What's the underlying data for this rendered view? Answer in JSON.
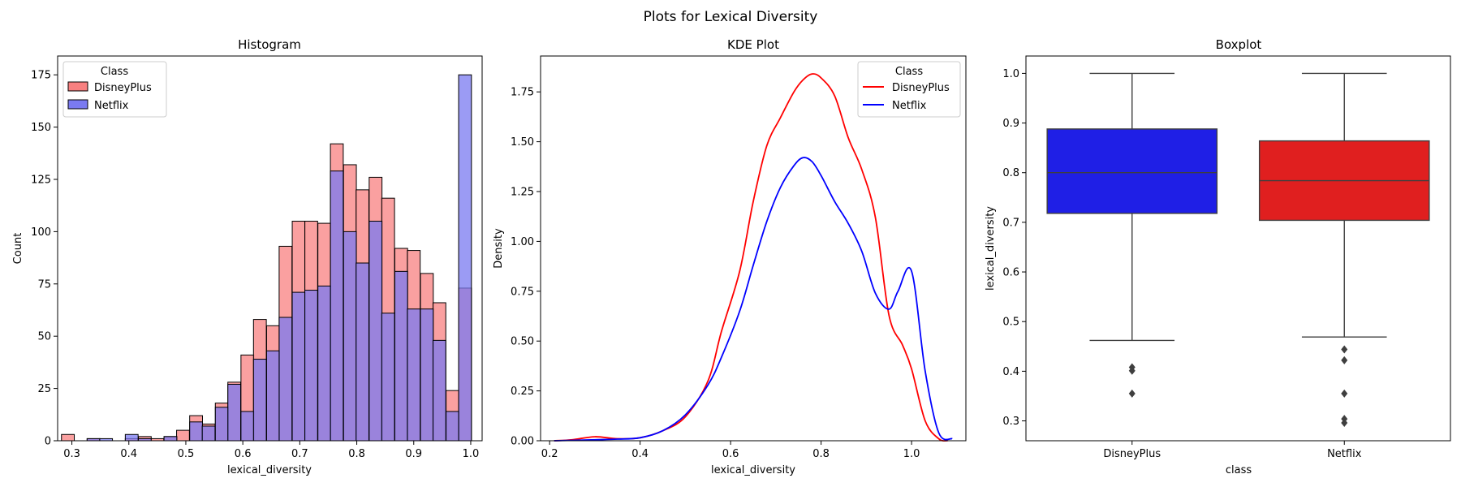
{
  "figure": {
    "suptitle": "Plots for Lexical Diversity"
  },
  "chart_data": [
    {
      "type": "histogram",
      "title": "Histogram",
      "xlabel": "lexical_diversity",
      "ylabel": "Count",
      "xlim": [
        0.275,
        1.02
      ],
      "ylim": [
        0,
        184
      ],
      "xticks": [
        0.3,
        0.4,
        0.5,
        0.6,
        0.7,
        0.8,
        0.9,
        1.0
      ],
      "xtick_labels": [
        "0.3",
        "0.4",
        "0.5",
        "0.6",
        "0.7",
        "0.8",
        "0.9",
        "1.0"
      ],
      "yticks": [
        0,
        25,
        50,
        75,
        100,
        125,
        150,
        175
      ],
      "ytick_labels": [
        "0",
        "25",
        "50",
        "75",
        "100",
        "125",
        "150",
        "175"
      ],
      "legend": {
        "title": "Class",
        "position": "top-left"
      },
      "bin_width": 0.0225,
      "series": [
        {
          "name": "DisneyPlus",
          "color": "#ff0000",
          "fill": "#f88080",
          "bins": [
            {
              "x": 0.293,
              "count": 3
            },
            {
              "x": 0.338,
              "count": 1
            },
            {
              "x": 0.405,
              "count": 1
            },
            {
              "x": 0.428,
              "count": 2
            },
            {
              "x": 0.45,
              "count": 1
            },
            {
              "x": 0.473,
              "count": 2
            },
            {
              "x": 0.495,
              "count": 5
            },
            {
              "x": 0.518,
              "count": 12
            },
            {
              "x": 0.54,
              "count": 8
            },
            {
              "x": 0.563,
              "count": 18
            },
            {
              "x": 0.585,
              "count": 28
            },
            {
              "x": 0.608,
              "count": 41
            },
            {
              "x": 0.63,
              "count": 58
            },
            {
              "x": 0.653,
              "count": 55
            },
            {
              "x": 0.675,
              "count": 93
            },
            {
              "x": 0.698,
              "count": 105
            },
            {
              "x": 0.72,
              "count": 105
            },
            {
              "x": 0.743,
              "count": 104
            },
            {
              "x": 0.765,
              "count": 142
            },
            {
              "x": 0.788,
              "count": 132
            },
            {
              "x": 0.81,
              "count": 120
            },
            {
              "x": 0.833,
              "count": 126
            },
            {
              "x": 0.855,
              "count": 116
            },
            {
              "x": 0.878,
              "count": 92
            },
            {
              "x": 0.9,
              "count": 91
            },
            {
              "x": 0.923,
              "count": 80
            },
            {
              "x": 0.945,
              "count": 66
            },
            {
              "x": 0.968,
              "count": 24
            },
            {
              "x": 0.99,
              "count": 73
            }
          ]
        },
        {
          "name": "Netflix",
          "color": "#0000ff",
          "fill": "#7a7af0",
          "bins": [
            {
              "x": 0.338,
              "count": 1
            },
            {
              "x": 0.36,
              "count": 1
            },
            {
              "x": 0.405,
              "count": 3
            },
            {
              "x": 0.428,
              "count": 1
            },
            {
              "x": 0.473,
              "count": 2
            },
            {
              "x": 0.518,
              "count": 9
            },
            {
              "x": 0.54,
              "count": 7
            },
            {
              "x": 0.563,
              "count": 16
            },
            {
              "x": 0.585,
              "count": 27
            },
            {
              "x": 0.608,
              "count": 14
            },
            {
              "x": 0.63,
              "count": 39
            },
            {
              "x": 0.653,
              "count": 43
            },
            {
              "x": 0.675,
              "count": 59
            },
            {
              "x": 0.698,
              "count": 71
            },
            {
              "x": 0.72,
              "count": 72
            },
            {
              "x": 0.743,
              "count": 74
            },
            {
              "x": 0.765,
              "count": 129
            },
            {
              "x": 0.788,
              "count": 100
            },
            {
              "x": 0.81,
              "count": 85
            },
            {
              "x": 0.833,
              "count": 105
            },
            {
              "x": 0.855,
              "count": 61
            },
            {
              "x": 0.878,
              "count": 81
            },
            {
              "x": 0.9,
              "count": 63
            },
            {
              "x": 0.923,
              "count": 63
            },
            {
              "x": 0.945,
              "count": 48
            },
            {
              "x": 0.968,
              "count": 14
            },
            {
              "x": 0.99,
              "count": 175
            }
          ]
        }
      ]
    },
    {
      "type": "line",
      "title": "KDE Plot",
      "xlabel": "lexical_diversity",
      "ylabel": "Density",
      "xlim": [
        0.18,
        1.12
      ],
      "ylim": [
        0,
        1.93
      ],
      "xticks": [
        0.2,
        0.4,
        0.6,
        0.8,
        1.0
      ],
      "xtick_labels": [
        "0.2",
        "0.4",
        "0.6",
        "0.8",
        "1.0"
      ],
      "yticks": [
        0,
        0.25,
        0.5,
        0.75,
        1.0,
        1.25,
        1.5,
        1.75
      ],
      "ytick_labels": [
        "0.00",
        "0.25",
        "0.50",
        "0.75",
        "1.00",
        "1.25",
        "1.50",
        "1.75"
      ],
      "legend": {
        "title": "Class",
        "position": "top-right"
      },
      "series": [
        {
          "name": "DisneyPlus",
          "color": "#ff0000",
          "x": [
            0.21,
            0.25,
            0.3,
            0.35,
            0.4,
            0.45,
            0.5,
            0.55,
            0.58,
            0.62,
            0.65,
            0.68,
            0.71,
            0.74,
            0.76,
            0.78,
            0.8,
            0.83,
            0.86,
            0.89,
            0.92,
            0.95,
            0.98,
            1.0,
            1.03,
            1.06,
            1.08
          ],
          "y": [
            0.0,
            0.005,
            0.02,
            0.01,
            0.015,
            0.05,
            0.12,
            0.3,
            0.55,
            0.85,
            1.2,
            1.48,
            1.62,
            1.75,
            1.81,
            1.84,
            1.82,
            1.73,
            1.52,
            1.36,
            1.12,
            0.63,
            0.48,
            0.36,
            0.1,
            0.01,
            0.0
          ]
        },
        {
          "name": "Netflix",
          "color": "#0000ff",
          "x": [
            0.21,
            0.25,
            0.3,
            0.35,
            0.4,
            0.45,
            0.5,
            0.55,
            0.58,
            0.62,
            0.65,
            0.68,
            0.71,
            0.74,
            0.76,
            0.78,
            0.8,
            0.83,
            0.86,
            0.89,
            0.92,
            0.95,
            0.97,
            1.0,
            1.03,
            1.06,
            1.09
          ],
          "y": [
            0.0,
            0.002,
            0.005,
            0.008,
            0.015,
            0.05,
            0.13,
            0.28,
            0.42,
            0.65,
            0.88,
            1.1,
            1.27,
            1.38,
            1.42,
            1.4,
            1.33,
            1.2,
            1.09,
            0.95,
            0.74,
            0.66,
            0.75,
            0.85,
            0.35,
            0.04,
            0.01
          ]
        }
      ]
    },
    {
      "type": "box",
      "title": "Boxplot",
      "xlabel": "class",
      "ylabel": "lexical_diversity",
      "ylim": [
        0.26,
        1.035
      ],
      "yticks": [
        0.3,
        0.4,
        0.5,
        0.6,
        0.7,
        0.8,
        0.9,
        1.0
      ],
      "ytick_labels": [
        "0.3",
        "0.4",
        "0.5",
        "0.6",
        "0.7",
        "0.8",
        "0.9",
        "1.0"
      ],
      "categories": [
        "DisneyPlus",
        "Netflix"
      ],
      "boxes": [
        {
          "name": "DisneyPlus",
          "color": "#1f1fe6",
          "whisker_low": 0.462,
          "q1": 0.718,
          "median": 0.8,
          "q3": 0.888,
          "whisker_high": 1.0,
          "outliers": [
            0.408,
            0.401,
            0.355
          ]
        },
        {
          "name": "Netflix",
          "color": "#e01f1f",
          "whisker_low": 0.469,
          "q1": 0.704,
          "median": 0.784,
          "q3": 0.864,
          "whisker_high": 1.0,
          "outliers": [
            0.444,
            0.422,
            0.355,
            0.304,
            0.296
          ]
        }
      ]
    }
  ]
}
